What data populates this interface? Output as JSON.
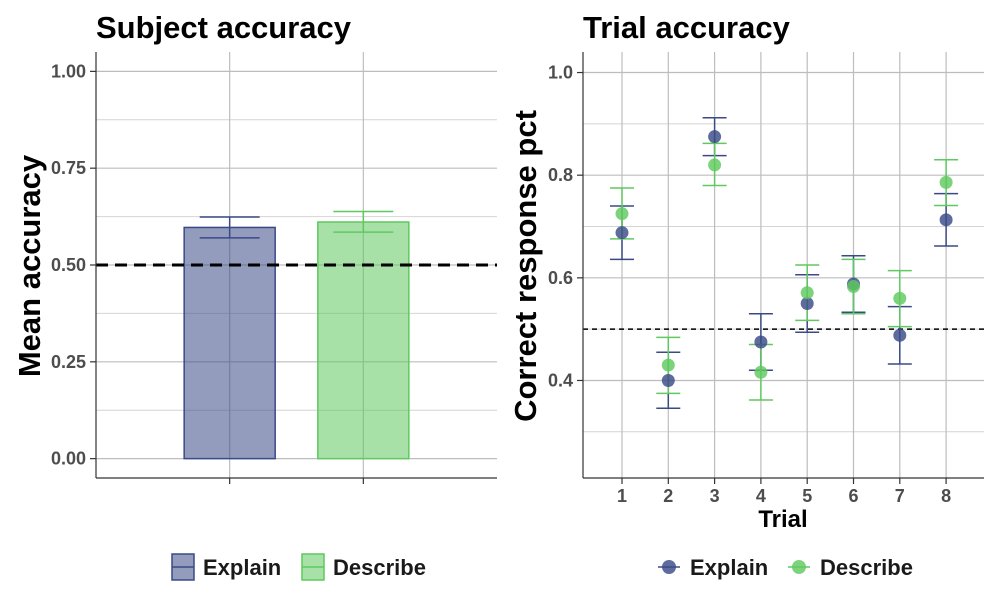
{
  "colors": {
    "explain": "#3b4a87",
    "describe": "#5fc95f",
    "grid": "#bdbdbd",
    "axis": "#333333",
    "reference": "#000000"
  },
  "chart_data": [
    {
      "type": "bar",
      "title": "Subject accuracy",
      "xlabel": "",
      "ylabel": "Mean accuracy",
      "ylim": [
        -0.05,
        1.05
      ],
      "yticks": [
        "0.00",
        "0.25",
        "0.50",
        "0.75",
        "1.00"
      ],
      "grid": true,
      "reference_line": {
        "y": 0.5,
        "style": "dashed"
      },
      "categories": [
        "Explain",
        "Describe"
      ],
      "values": [
        0.597,
        0.611
      ],
      "error_low": [
        0.57,
        0.585
      ],
      "error_high": [
        0.624,
        0.638
      ],
      "legend": {
        "position": "bottom",
        "entries": [
          "Explain",
          "Describe"
        ]
      }
    },
    {
      "type": "scatter",
      "title": "Trial accuracy",
      "xlabel": "Trial",
      "ylabel": "Correct response pct",
      "x": [
        1,
        2,
        3,
        4,
        5,
        6,
        7,
        8
      ],
      "ylim": [
        0.21,
        1.04
      ],
      "yticks": [
        "0.4",
        "0.6",
        "0.8",
        "1.0"
      ],
      "grid": true,
      "reference_line": {
        "y": 0.5,
        "style": "dashed"
      },
      "series": [
        {
          "name": "Explain",
          "values": [
            0.688,
            0.4,
            0.875,
            0.475,
            0.55,
            0.588,
            0.488,
            0.713
          ],
          "error_low": [
            0.636,
            0.346,
            0.838,
            0.42,
            0.494,
            0.533,
            0.432,
            0.662
          ],
          "error_high": [
            0.74,
            0.455,
            0.912,
            0.53,
            0.606,
            0.643,
            0.544,
            0.764
          ]
        },
        {
          "name": "Describe",
          "values": [
            0.725,
            0.43,
            0.82,
            0.416,
            0.571,
            0.583,
            0.56,
            0.786
          ],
          "error_low": [
            0.676,
            0.375,
            0.78,
            0.362,
            0.517,
            0.53,
            0.505,
            0.741
          ],
          "error_high": [
            0.775,
            0.484,
            0.862,
            0.47,
            0.625,
            0.636,
            0.614,
            0.83
          ]
        }
      ],
      "legend": {
        "position": "bottom",
        "entries": [
          "Explain",
          "Describe"
        ]
      }
    }
  ]
}
